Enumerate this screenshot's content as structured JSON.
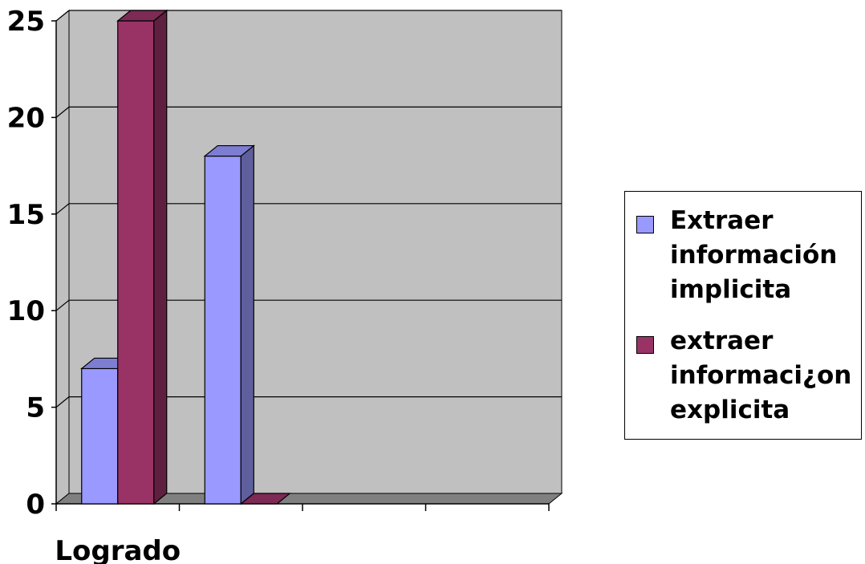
{
  "chart_data": {
    "type": "bar",
    "style": "3d-clustered-column",
    "categories": [
      "Logrado",
      "",
      "",
      ""
    ],
    "series": [
      {
        "name": "Extraer información implicita",
        "values": [
          7,
          18,
          0,
          0
        ],
        "color": "#9999FF"
      },
      {
        "name": "extraer informaci¿on explicita",
        "values": [
          25,
          0,
          0,
          0
        ],
        "color": "#993366"
      }
    ],
    "title": "",
    "xlabel": "",
    "ylabel": "",
    "ylim": [
      0,
      25
    ],
    "yticks": [
      0,
      5,
      10,
      15,
      20,
      25
    ],
    "grid": true,
    "legend_position": "right",
    "wall_color": "#C0C0C0",
    "floor_color": "#808080"
  }
}
